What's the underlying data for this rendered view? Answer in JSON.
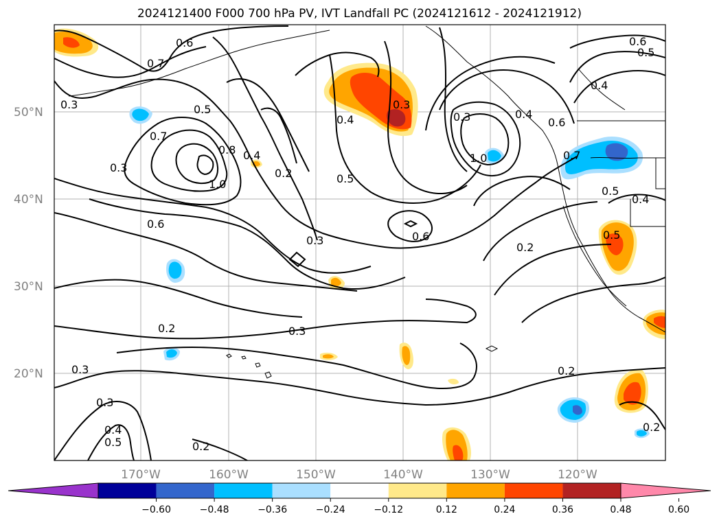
{
  "title": "2024121400 F000 700 hPa PV, IVT Landfall PC (2024121612 - 2024121912)",
  "map": {
    "lat_labels": [
      "50°N",
      "40°N",
      "30°N",
      "20°N"
    ],
    "lon_labels": [
      "170°W",
      "160°W",
      "150°W",
      "140°W",
      "130°W",
      "120°W"
    ],
    "contour_labels": [
      "0.3",
      "0.7",
      "0.6",
      "0.5",
      "0.8",
      "1.0",
      "0.7",
      "0.3",
      "0.6",
      "0.2",
      "0.4",
      "0.3",
      "0.4",
      "0.3",
      "0.5",
      "1.0",
      "0.6",
      "0.2",
      "0.2",
      "0.3",
      "0.3",
      "0.3",
      "0.4",
      "0.5",
      "0.2",
      "0.2",
      "0.2",
      "0.7",
      "0.5",
      "0.4",
      "0.5",
      "0.6",
      "0.5",
      "0.4",
      "0.3",
      "0.4",
      "0.6"
    ]
  },
  "colorbar": {
    "colors": [
      "#9933cc",
      "#000099",
      "#3366cc",
      "#00bfff",
      "#aadfff",
      "#ffffff",
      "#ffe98a",
      "#ffa500",
      "#ff4500",
      "#b22222",
      "#ff88aa"
    ],
    "tick_labels": [
      "−0.60",
      "−0.48",
      "−0.36",
      "−0.24",
      "−0.12",
      "0.12",
      "0.24",
      "0.36",
      "0.48",
      "0.60"
    ]
  }
}
